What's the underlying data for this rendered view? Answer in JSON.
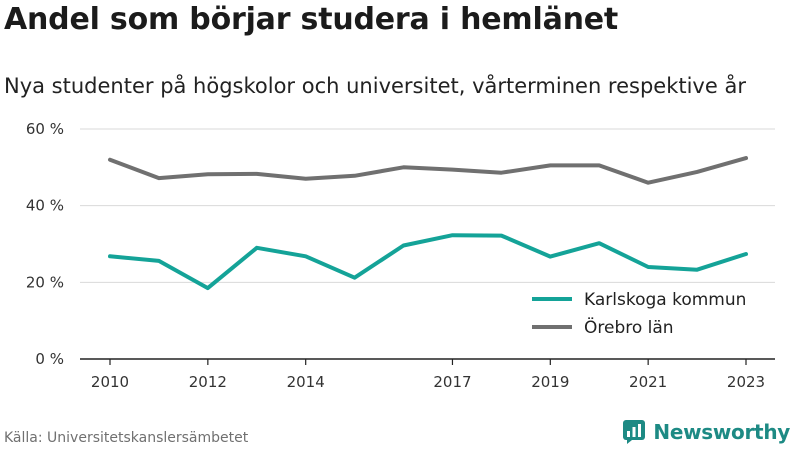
{
  "header": {
    "title": "Andel som börjar studera i hemlänet",
    "subtitle": "Nya studenter på högskolor och universitet, vårterminen respektive år"
  },
  "footer": {
    "source": "Källa: Universitetskanslersämbetet",
    "brand": "Newsworthy"
  },
  "colors": {
    "series_karlskoga": "#14a398",
    "series_orebro": "#707070",
    "grid": "#d9d9d9",
    "axis": "#222222",
    "brand": "#1d8a84"
  },
  "icons": {
    "brand_logo": "newsworthy-logo-icon"
  },
  "chart_data": {
    "type": "line",
    "title": "Andel som börjar studera i hemlänet",
    "subtitle": "Nya studenter på högskolor och universitet, vårterminen respektive år",
    "x": [
      2010,
      2011,
      2012,
      2013,
      2014,
      2015,
      2016,
      2017,
      2018,
      2019,
      2020,
      2021,
      2022,
      2023
    ],
    "xticks": [
      2010,
      2012,
      2014,
      2017,
      2019,
      2021,
      2023
    ],
    "xtick_labels": [
      "2010",
      "2012",
      "2014",
      "2017",
      "2019",
      "2021",
      "2023"
    ],
    "xlim": [
      2010,
      2023
    ],
    "ylim": [
      0,
      60
    ],
    "yticks": [
      0,
      20,
      40,
      60
    ],
    "ytick_labels": [
      "0 %",
      "20 %",
      "40 %",
      "60 %"
    ],
    "grid": true,
    "legend_position": "bottom-right",
    "series": [
      {
        "name": "Karlskoga kommun",
        "values": [
          26.8,
          25.6,
          18.5,
          29.0,
          26.8,
          21.2,
          29.6,
          32.3,
          32.2,
          26.7,
          30.2,
          24.0,
          23.3,
          27.4
        ]
      },
      {
        "name": "Örebro län",
        "values": [
          52.0,
          47.2,
          48.2,
          48.3,
          47.0,
          47.8,
          50.0,
          49.4,
          48.6,
          50.5,
          50.5,
          46.0,
          48.8,
          52.4
        ]
      }
    ]
  }
}
